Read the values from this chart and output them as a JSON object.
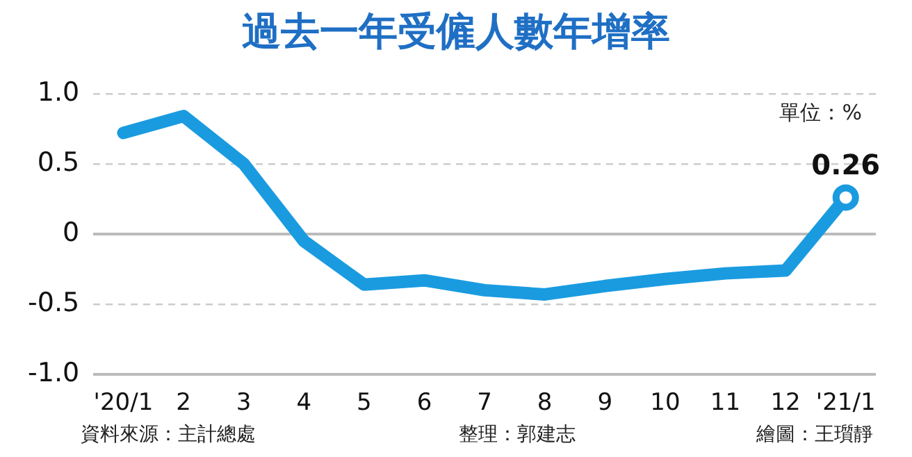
{
  "chart_data": {
    "type": "line",
    "title": "過去一年受僱人數年增率",
    "categories": [
      "'20/1",
      "2",
      "3",
      "4",
      "5",
      "6",
      "7",
      "8",
      "9",
      "10",
      "11",
      "12",
      "'21/1"
    ],
    "series": [
      {
        "color": "#1a9be0",
        "values": [
          0.72,
          0.84,
          0.5,
          -0.05,
          -0.36,
          -0.33,
          -0.4,
          -0.43,
          -0.37,
          -0.32,
          -0.28,
          -0.26,
          0.26
        ],
        "value_labels": [
          null,
          null,
          null,
          null,
          null,
          null,
          null,
          null,
          null,
          null,
          null,
          null,
          "0.26"
        ]
      }
    ],
    "ylim": [
      -1.0,
      1.0
    ],
    "yticks": [
      {
        "value": -1,
        "label": "-1.0"
      },
      {
        "value": -0.5,
        "label": "-0.5"
      },
      0,
      {
        "value": 0.5,
        "label": "0.5"
      },
      {
        "value": 1,
        "label": "1.0"
      }
    ],
    "grid": "y",
    "legend": false,
    "annotations": [
      "單位：%",
      "資料來源：主計總處",
      "整理：郭建志",
      "繪圖：王瓆靜"
    ]
  }
}
